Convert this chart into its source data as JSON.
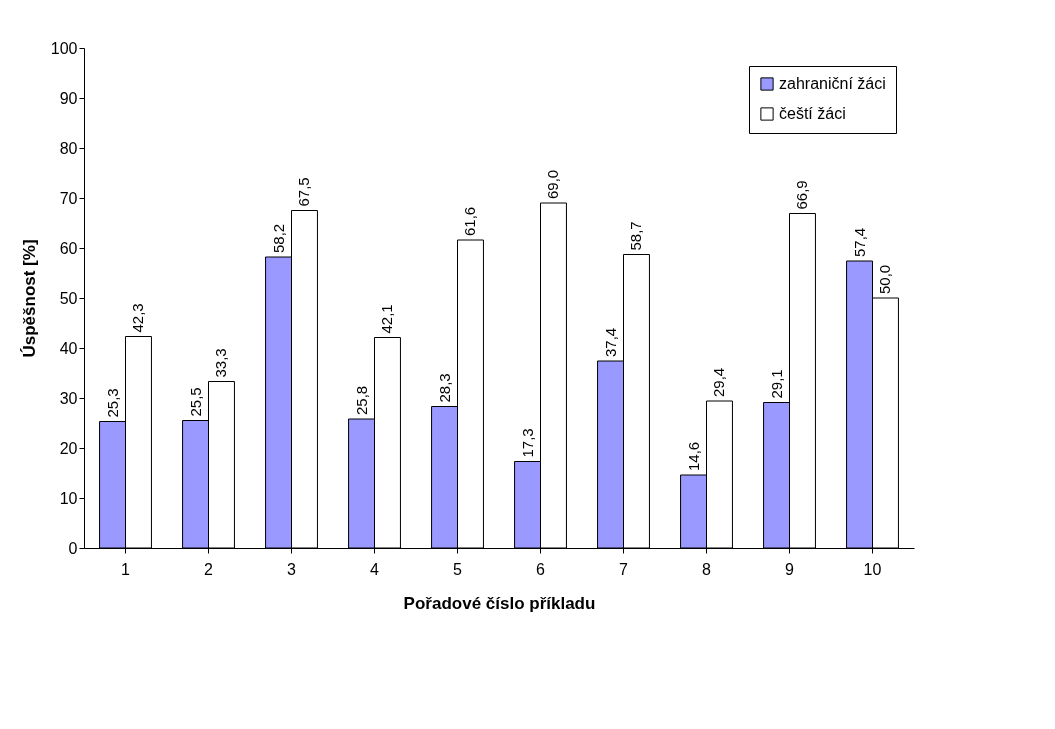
{
  "chart_data": {
    "type": "bar",
    "xlabel": "Pořadové číslo příkladu",
    "ylabel": "Úspěšnost [%]",
    "categories": [
      "1",
      "2",
      "3",
      "4",
      "5",
      "6",
      "7",
      "8",
      "9",
      "10"
    ],
    "series": [
      {
        "name": "zahraniční žáci",
        "color": "#9999ff",
        "values": [
          25.3,
          25.5,
          58.2,
          25.8,
          28.3,
          17.3,
          37.4,
          14.6,
          29.1,
          57.4
        ],
        "value_labels": [
          "25,3",
          "25,5",
          "58,2",
          "25,8",
          "28,3",
          "17,3",
          "37,4",
          "14,6",
          "29,1",
          "57,4"
        ]
      },
      {
        "name": "čeští žáci",
        "color": "#ffffff",
        "values": [
          42.3,
          33.3,
          67.5,
          42.1,
          61.6,
          69.0,
          58.7,
          29.4,
          66.9,
          50.0
        ],
        "value_labels": [
          "42,3",
          "33,3",
          "67,5",
          "42,1",
          "61,6",
          "69,0",
          "58,7",
          "29,4",
          "66,9",
          "50,0"
        ]
      }
    ],
    "ylim": [
      0,
      100
    ],
    "yticks": [
      0,
      10,
      20,
      30,
      40,
      50,
      60,
      70,
      80,
      90,
      100
    ],
    "grid": false,
    "legend": "top right"
  }
}
